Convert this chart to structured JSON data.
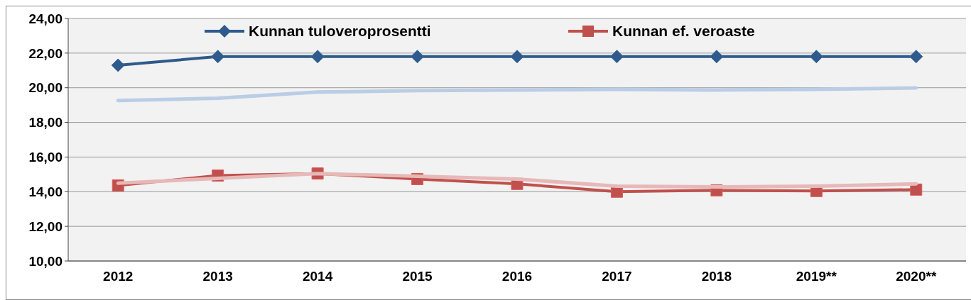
{
  "chart_data": {
    "type": "line",
    "categories": [
      "2012",
      "2013",
      "2014",
      "2015",
      "2016",
      "2017",
      "2018",
      "2019**",
      "2020**"
    ],
    "series": [
      {
        "name": "Kunnan tuloveroprosentti",
        "color": "#2e5a8c",
        "marker": "diamond",
        "values": [
          21.3,
          21.8,
          21.8,
          21.8,
          21.8,
          21.8,
          21.8,
          21.8,
          21.8
        ]
      },
      {
        "name": "Kunnan ef. veroaste",
        "color": "#c0504d",
        "marker": "square",
        "values": [
          14.36,
          14.93,
          15.05,
          14.73,
          14.45,
          14.0,
          14.08,
          14.04,
          14.12
        ]
      },
      {
        "color": "#b9cde5",
        "marker": "none",
        "values": [
          19.26,
          19.39,
          19.75,
          19.83,
          19.87,
          19.91,
          19.87,
          19.91,
          19.99
        ]
      },
      {
        "color": "#e6b9b8",
        "marker": "none",
        "values": [
          14.49,
          14.77,
          15.05,
          14.89,
          14.73,
          14.32,
          14.28,
          14.32,
          14.45
        ]
      }
    ],
    "ylim": [
      10,
      24
    ],
    "yticks": [
      {
        "value": 10,
        "label": "10,00"
      },
      {
        "value": 12,
        "label": "12,00"
      },
      {
        "value": 14,
        "label": "14,00"
      },
      {
        "value": 16,
        "label": "16,00"
      },
      {
        "value": 18,
        "label": "18,00"
      },
      {
        "value": 20,
        "label": "20,00"
      },
      {
        "value": 22,
        "label": "22,00"
      },
      {
        "value": 24,
        "label": "24,00"
      }
    ],
    "grid": "y",
    "legend": "top"
  }
}
